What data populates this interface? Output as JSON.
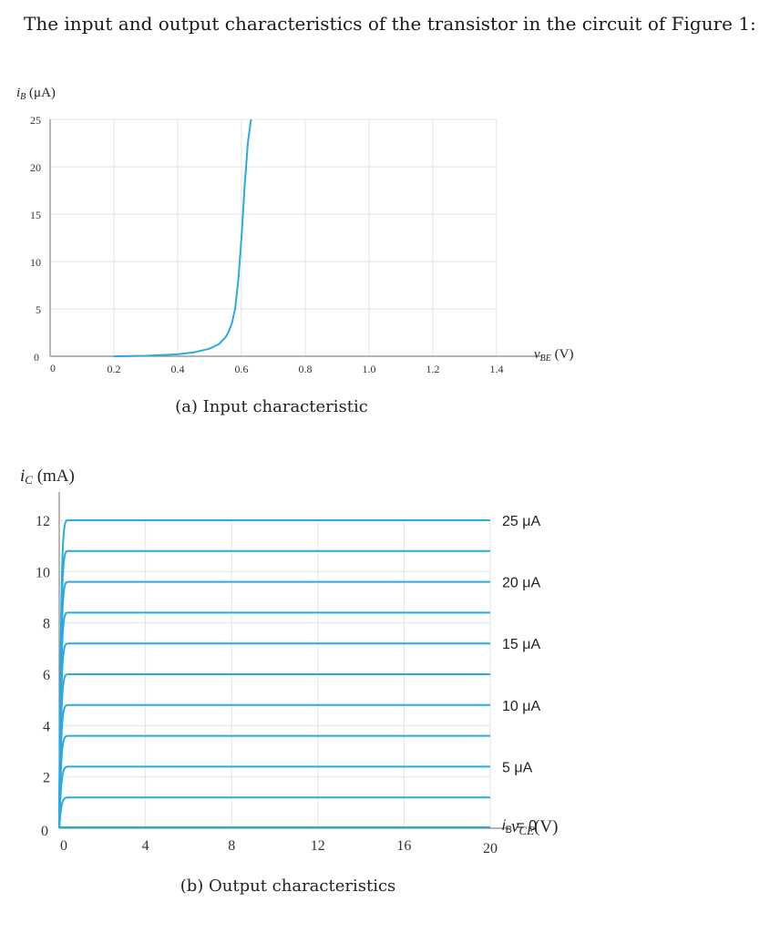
{
  "page": {
    "heading": "The input and output characteristics of the transistor in the circuit of Figure 1:"
  },
  "colors": {
    "curve": "#29abe2",
    "grid": "#e3e3e3",
    "axis": "#888888"
  },
  "chart_data": [
    {
      "type": "line",
      "caption": "(a) Input characteristic",
      "ylabel": "iB (μA)",
      "xlabel": "vBE (V)",
      "xlim": [
        0,
        1.4
      ],
      "ylim": [
        0,
        25
      ],
      "xticks": [
        "0",
        "0.2",
        "0.4",
        "0.6",
        "0.8",
        "1.0",
        "1.2",
        "1.4"
      ],
      "yticks": [
        "0",
        "5",
        "10",
        "15",
        "20",
        "25"
      ],
      "series": [
        {
          "x": [
            0.2,
            0.3,
            0.4,
            0.45,
            0.5,
            0.53,
            0.55,
            0.56,
            0.57,
            0.58,
            0.59,
            0.6,
            0.61,
            0.62,
            0.63
          ],
          "y": [
            0,
            0.05,
            0.2,
            0.4,
            0.8,
            1.3,
            2.0,
            2.6,
            3.5,
            5.0,
            8.0,
            12.5,
            18.0,
            22.5,
            25
          ]
        }
      ]
    },
    {
      "type": "line",
      "caption": "(b) Output characteristics",
      "ylabel": "iC (mA)",
      "xlabel": "vCE (V)",
      "xlim": [
        0,
        20
      ],
      "ylim": [
        0,
        12
      ],
      "xticks": [
        "0",
        "4",
        "8",
        "12",
        "16",
        "20"
      ],
      "yticks": [
        "0",
        "2",
        "4",
        "6",
        "8",
        "10",
        "12"
      ],
      "ib_values_uA": [
        0,
        2.5,
        5,
        7.5,
        10,
        12.5,
        15,
        17.5,
        20,
        22.5,
        25
      ],
      "ic_values_mA": [
        0,
        1.2,
        2.4,
        3.6,
        4.8,
        6.0,
        7.2,
        8.4,
        9.6,
        10.8,
        12.0
      ],
      "curve_labels": [
        "iB = 0",
        "5 μA",
        "10 μA",
        "15 μA",
        "20 μA",
        "25 μA"
      ]
    }
  ]
}
